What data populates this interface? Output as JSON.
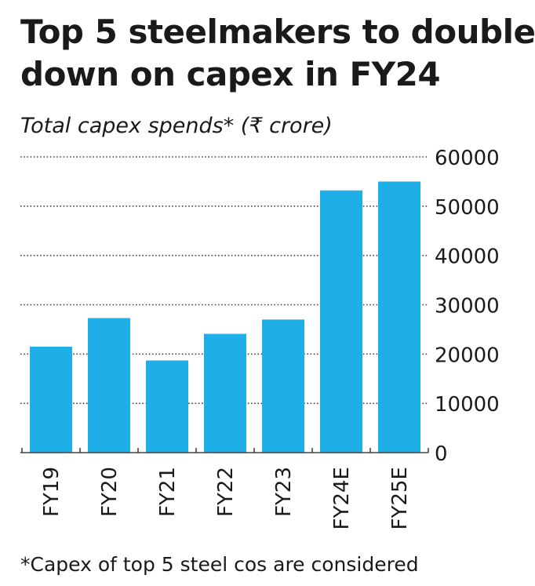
{
  "title_lines": [
    "Top 5 steelmakers to double",
    "down on capex in FY24"
  ],
  "subtitle": "Total capex spends* (₹ crore)",
  "footnote": "*Capex of top 5 steel cos are considered",
  "colors": {
    "bar": "#1eaee8",
    "grid": "#444444",
    "text": "#1a1a1a"
  },
  "chart_data": {
    "type": "bar",
    "categories": [
      "FY19",
      "FY20",
      "FY21",
      "FY22",
      "FY23",
      "FY24E",
      "FY25E"
    ],
    "values": [
      21500,
      27300,
      18700,
      24100,
      27000,
      53200,
      55000
    ],
    "yticks": [
      0,
      10000,
      20000,
      30000,
      40000,
      50000,
      60000
    ],
    "ylim": [
      0,
      60000
    ],
    "title": "Top 5 steelmakers to double down on capex in FY24",
    "subtitle": "Total capex spends* (₹ crore)",
    "grid": true,
    "y_axis_side": "right"
  }
}
